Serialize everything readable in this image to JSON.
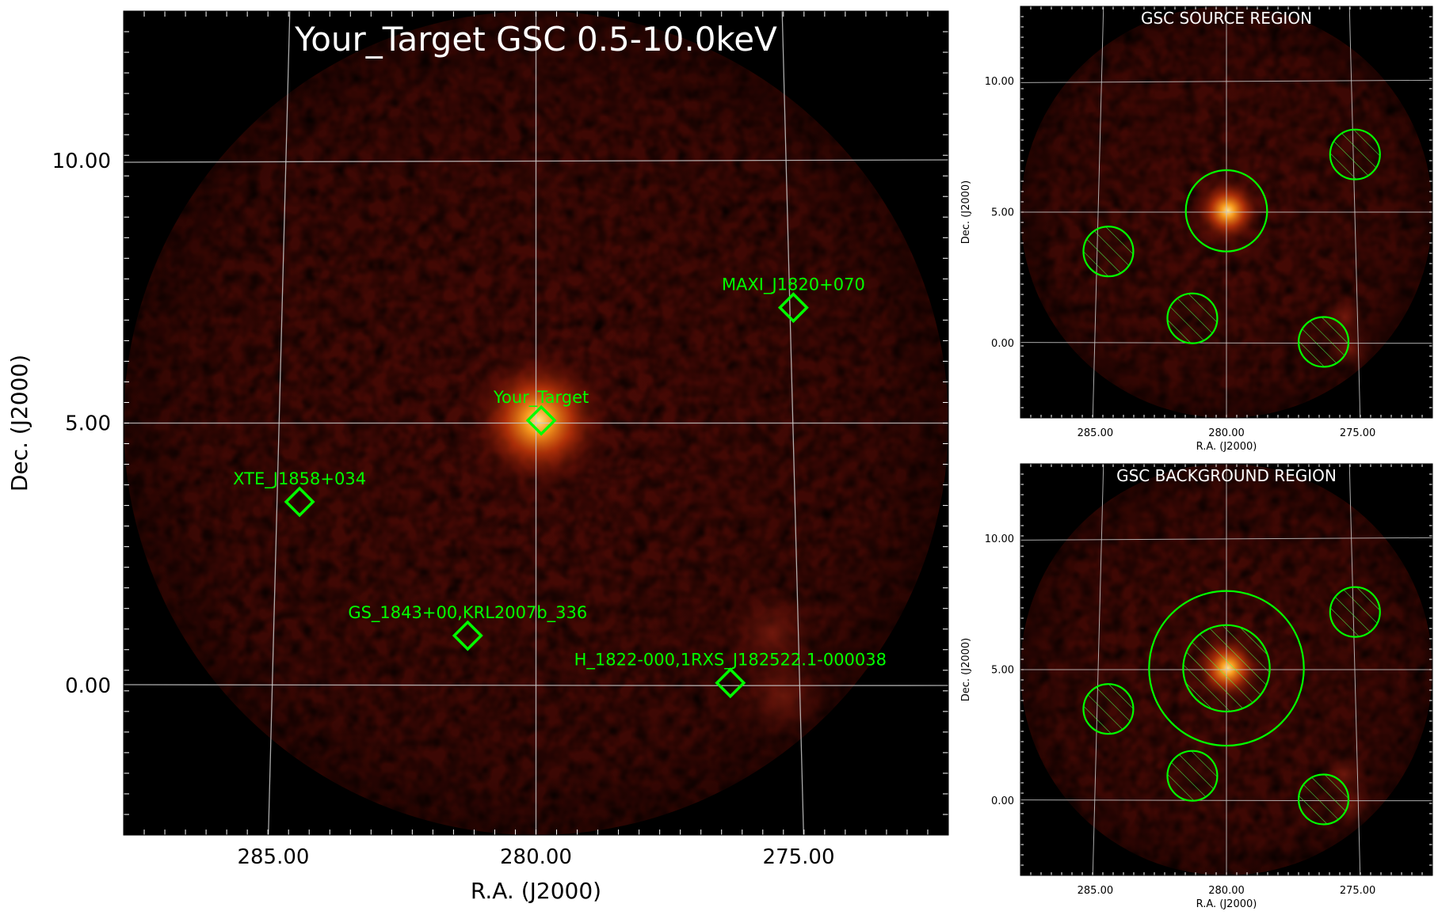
{
  "main_panel": {
    "title": "Your_Target GSC 0.5-10.0keV",
    "xlabel": "R.A. (J2000)",
    "ylabel": "Dec. (J2000)"
  },
  "source_panel": {
    "title": "GSC SOURCE REGION",
    "xlabel": "R.A. (J2000)",
    "ylabel": "Dec. (J2000)"
  },
  "background_panel": {
    "title": "GSC BACKGROUND REGION",
    "xlabel": "R.A. (J2000)",
    "ylabel": "Dec. (J2000)"
  },
  "colors": {
    "background": "#000000",
    "image_base": "#3a0804",
    "source_glow": "#ff8a1a",
    "grid": "#c8c8c8",
    "marker": "#00ff00",
    "text": "#ffffff"
  },
  "chart_data": [
    {
      "type": "image-map",
      "panel": "main",
      "title": "Your_Target GSC 0.5-10.0keV",
      "xlabel": "R.A. (J2000)",
      "ylabel": "Dec. (J2000)",
      "xlim": [
        287.85,
        272.15
      ],
      "ylim": [
        -2.85,
        12.85
      ],
      "x_ticks": [
        285.0,
        280.0,
        275.0
      ],
      "x_tick_labels": [
        "285.00",
        "280.00",
        "275.00"
      ],
      "y_ticks": [
        10.0,
        5.0,
        0.0
      ],
      "y_tick_labels": [
        "10.00",
        "5.00",
        "0.00"
      ],
      "grid": true,
      "field_of_view": {
        "center_ra": 280.0,
        "center_dec": 5.0,
        "radius_deg": 7.85
      },
      "bright_source": {
        "ra": 279.95,
        "dec": 5.05
      },
      "faint_emission": [
        {
          "ra": 275.5,
          "dec": 1.0
        },
        {
          "ra": 275.3,
          "dec": -0.2
        }
      ],
      "sources": [
        {
          "name": "Your_Target",
          "ra": 279.9,
          "dec": 5.05
        },
        {
          "name": "MAXI_J1820+070",
          "ra": 275.1,
          "dec": 7.2
        },
        {
          "name": "XTE_J1858+034",
          "ra": 284.5,
          "dec": 3.5
        },
        {
          "name": "GS_1843+00,KRL2007b_336",
          "ra": 281.3,
          "dec": 0.95
        },
        {
          "name": "H_1822-000,1RXS_J182522.1-000038",
          "ra": 276.3,
          "dec": 0.05
        }
      ]
    },
    {
      "type": "image-map",
      "panel": "source-region",
      "title": "GSC SOURCE REGION",
      "xlabel": "R.A. (J2000)",
      "ylabel": "Dec. (J2000)",
      "xlim": [
        287.85,
        272.15
      ],
      "ylim": [
        -2.85,
        12.85
      ],
      "x_ticks": [
        285.0,
        280.0,
        275.0
      ],
      "x_tick_labels": [
        "285.00",
        "280.00",
        "275.00"
      ],
      "y_ticks": [
        10.0,
        5.0,
        0.0
      ],
      "y_tick_labels": [
        "10.00",
        "5.00",
        "0.00"
      ],
      "grid": true,
      "regions": [
        {
          "kind": "source",
          "ra": 280.0,
          "dec": 5.05,
          "radius_deg": 1.55,
          "excluded": false
        },
        {
          "kind": "exclusion",
          "ra": 284.5,
          "dec": 3.5,
          "radius_deg": 0.95,
          "excluded": true
        },
        {
          "kind": "exclusion",
          "ra": 281.3,
          "dec": 0.95,
          "radius_deg": 0.95,
          "excluded": true
        },
        {
          "kind": "exclusion",
          "ra": 276.3,
          "dec": 0.05,
          "radius_deg": 0.95,
          "excluded": true
        },
        {
          "kind": "exclusion",
          "ra": 275.1,
          "dec": 7.2,
          "radius_deg": 0.95,
          "excluded": true
        }
      ]
    },
    {
      "type": "image-map",
      "panel": "background-region",
      "title": "GSC BACKGROUND REGION",
      "xlabel": "R.A. (J2000)",
      "ylabel": "Dec. (J2000)",
      "xlim": [
        287.85,
        272.15
      ],
      "ylim": [
        -2.85,
        12.85
      ],
      "x_ticks": [
        285.0,
        280.0,
        275.0
      ],
      "x_tick_labels": [
        "285.00",
        "280.00",
        "275.00"
      ],
      "y_ticks": [
        10.0,
        5.0,
        0.0
      ],
      "y_tick_labels": [
        "10.00",
        "5.00",
        "0.00"
      ],
      "grid": true,
      "regions": [
        {
          "kind": "background-annulus",
          "ra": 280.0,
          "dec": 5.05,
          "inner_radius_deg": 1.65,
          "outer_radius_deg": 2.95
        },
        {
          "kind": "exclusion",
          "ra": 280.0,
          "dec": 5.05,
          "radius_deg": 1.65,
          "excluded": true
        },
        {
          "kind": "exclusion",
          "ra": 284.5,
          "dec": 3.5,
          "radius_deg": 0.95,
          "excluded": true
        },
        {
          "kind": "exclusion",
          "ra": 281.3,
          "dec": 0.95,
          "radius_deg": 0.95,
          "excluded": true
        },
        {
          "kind": "exclusion",
          "ra": 276.3,
          "dec": 0.05,
          "radius_deg": 0.95,
          "excluded": true
        },
        {
          "kind": "exclusion",
          "ra": 275.1,
          "dec": 7.2,
          "radius_deg": 0.95,
          "excluded": true
        }
      ]
    }
  ]
}
